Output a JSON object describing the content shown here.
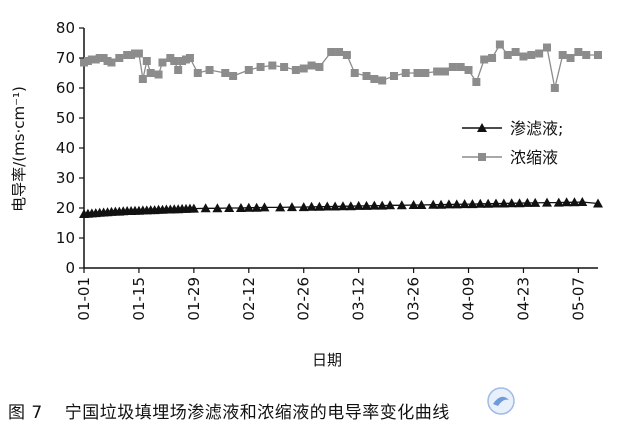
{
  "caption": {
    "figure_number": "图 7",
    "text": "宁国垃圾填埋场渗滤液和浓缩液的电导率变化曲线"
  },
  "chart_data": {
    "type": "line",
    "xlabel": "日期",
    "ylabel": "电导率/(ms·cm⁻¹)",
    "ylim": [
      0,
      80
    ],
    "yticks": [
      0,
      10,
      20,
      30,
      40,
      50,
      60,
      70,
      80
    ],
    "x_date_range": [
      "01-01",
      "05-12"
    ],
    "x_ticks": [
      "01-01",
      "01-15",
      "01-29",
      "02-12",
      "02-26",
      "03-12",
      "03-26",
      "04-09",
      "04-23",
      "05-07"
    ],
    "grid": false,
    "legend_position": "right-middle",
    "colors": {
      "渗滤液": "#111111",
      "浓缩液": "#8c8c8c"
    },
    "series": [
      {
        "name": "渗滤液;",
        "marker": "triangle",
        "x": [
          "01-01",
          "01-02",
          "01-03",
          "01-04",
          "01-05",
          "01-06",
          "01-07",
          "01-08",
          "01-09",
          "01-10",
          "01-11",
          "01-12",
          "01-13",
          "01-14",
          "01-15",
          "01-16",
          "01-17",
          "01-18",
          "01-19",
          "01-20",
          "01-21",
          "01-22",
          "01-23",
          "01-24",
          "01-25",
          "01-26",
          "01-27",
          "01-28",
          "01-29",
          "02-01",
          "02-04",
          "02-07",
          "02-10",
          "02-12",
          "02-14",
          "02-16",
          "02-20",
          "02-23",
          "02-26",
          "02-28",
          "03-02",
          "03-04",
          "03-06",
          "03-08",
          "03-10",
          "03-12",
          "03-14",
          "03-16",
          "03-18",
          "03-20",
          "03-23",
          "03-26",
          "03-28",
          "03-31",
          "04-02",
          "04-04",
          "04-06",
          "04-08",
          "04-10",
          "04-12",
          "04-14",
          "04-16",
          "04-18",
          "04-20",
          "04-22",
          "04-24",
          "04-26",
          "04-29",
          "05-02",
          "05-04",
          "05-06",
          "05-08",
          "05-12"
        ],
        "values": [
          18.0,
          18.1,
          18.2,
          18.3,
          18.4,
          18.5,
          18.6,
          18.7,
          18.8,
          18.8,
          18.9,
          19.0,
          19.0,
          19.1,
          19.1,
          19.2,
          19.2,
          19.3,
          19.3,
          19.4,
          19.4,
          19.5,
          19.5,
          19.6,
          19.6,
          19.7,
          19.7,
          19.8,
          19.8,
          19.9,
          19.9,
          20.0,
          20.0,
          20.1,
          20.1,
          20.2,
          20.2,
          20.3,
          20.3,
          20.4,
          20.4,
          20.5,
          20.5,
          20.6,
          20.6,
          20.7,
          20.7,
          20.8,
          20.8,
          20.9,
          20.9,
          21.0,
          21.0,
          21.1,
          21.1,
          21.2,
          21.2,
          21.3,
          21.3,
          21.4,
          21.4,
          21.5,
          21.5,
          21.6,
          21.6,
          21.7,
          21.7,
          21.8,
          21.8,
          21.9,
          21.9,
          22.0,
          21.5
        ]
      },
      {
        "name": "浓缩液",
        "marker": "square",
        "x": [
          "01-01",
          "01-02",
          "01-03",
          "01-04",
          "01-05",
          "01-06",
          "01-07",
          "01-08",
          "01-10",
          "01-12",
          "01-13",
          "01-14",
          "01-15",
          "01-16",
          "01-17",
          "01-18",
          "01-20",
          "01-21",
          "01-23",
          "01-24",
          "01-25",
          "01-26",
          "01-27",
          "01-28",
          "01-30",
          "02-02",
          "02-06",
          "02-08",
          "02-12",
          "02-15",
          "02-18",
          "02-21",
          "02-24",
          "02-26",
          "02-28",
          "03-02",
          "03-05",
          "03-07",
          "03-09",
          "03-11",
          "03-14",
          "03-16",
          "03-18",
          "03-21",
          "03-24",
          "03-27",
          "03-29",
          "04-01",
          "04-03",
          "04-05",
          "04-07",
          "04-09",
          "04-11",
          "04-13",
          "04-15",
          "04-17",
          "04-19",
          "04-21",
          "04-23",
          "04-25",
          "04-27",
          "04-29",
          "05-01",
          "05-03",
          "05-05",
          "05-07",
          "05-09",
          "05-12"
        ],
        "values": [
          68.5,
          69,
          69.5,
          69.5,
          70,
          70,
          69,
          68.5,
          70,
          71,
          71,
          71.5,
          71.5,
          63,
          69,
          65,
          64.5,
          68.5,
          70,
          69,
          66,
          69,
          69.5,
          70,
          65,
          66,
          65,
          64,
          66,
          67,
          67.5,
          67,
          66,
          66.5,
          67.5,
          67,
          72,
          72,
          71,
          65,
          64,
          63,
          62.5,
          64,
          65,
          65,
          65,
          65.5,
          65.5,
          67,
          67,
          66,
          62,
          69.5,
          70,
          74.5,
          71,
          72,
          70.5,
          71,
          71.5,
          73.5,
          60,
          71,
          70,
          72,
          71,
          71
        ]
      }
    ]
  }
}
